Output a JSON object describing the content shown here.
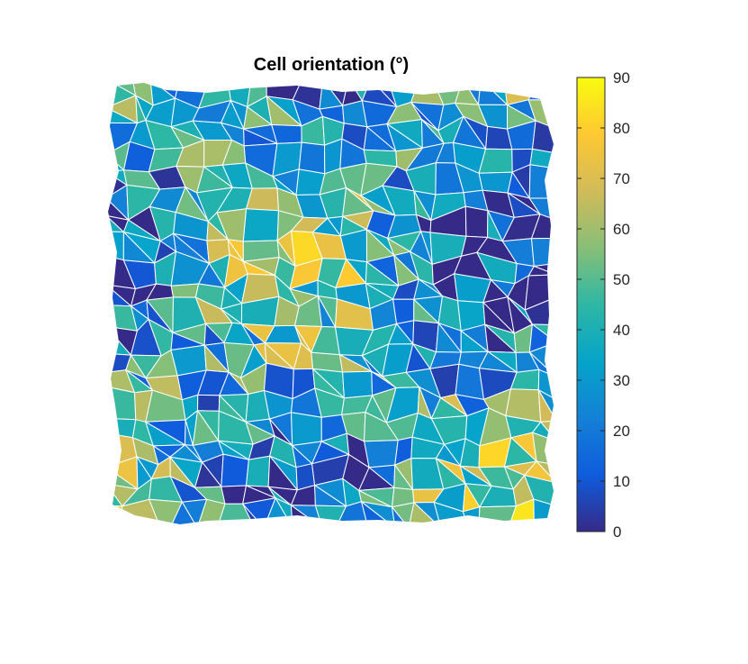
{
  "chart_data": {
    "type": "heatmap",
    "title": "Cell orientation (°)",
    "xlabel": "",
    "ylabel": "",
    "colormap": "parula",
    "colorbar": {
      "clim": [
        0,
        90
      ],
      "ticks": [
        0,
        10,
        20,
        30,
        40,
        50,
        60,
        70,
        80,
        90
      ],
      "tick_labels": [
        "0",
        "10",
        "20",
        "30",
        "40",
        "50",
        "60",
        "70",
        "80",
        "90"
      ]
    },
    "colormap_stops": [
      "#352a87",
      "#0f5cdd",
      "#1481d6",
      "#06a4ca",
      "#2eb7a4",
      "#87bf77",
      "#d1bb59",
      "#fec832",
      "#f9fb0e"
    ],
    "grid": false,
    "axes_visible": false,
    "description_of_content": "Segmented tissue cells, each filled with a color encoding its orientation angle"
  }
}
